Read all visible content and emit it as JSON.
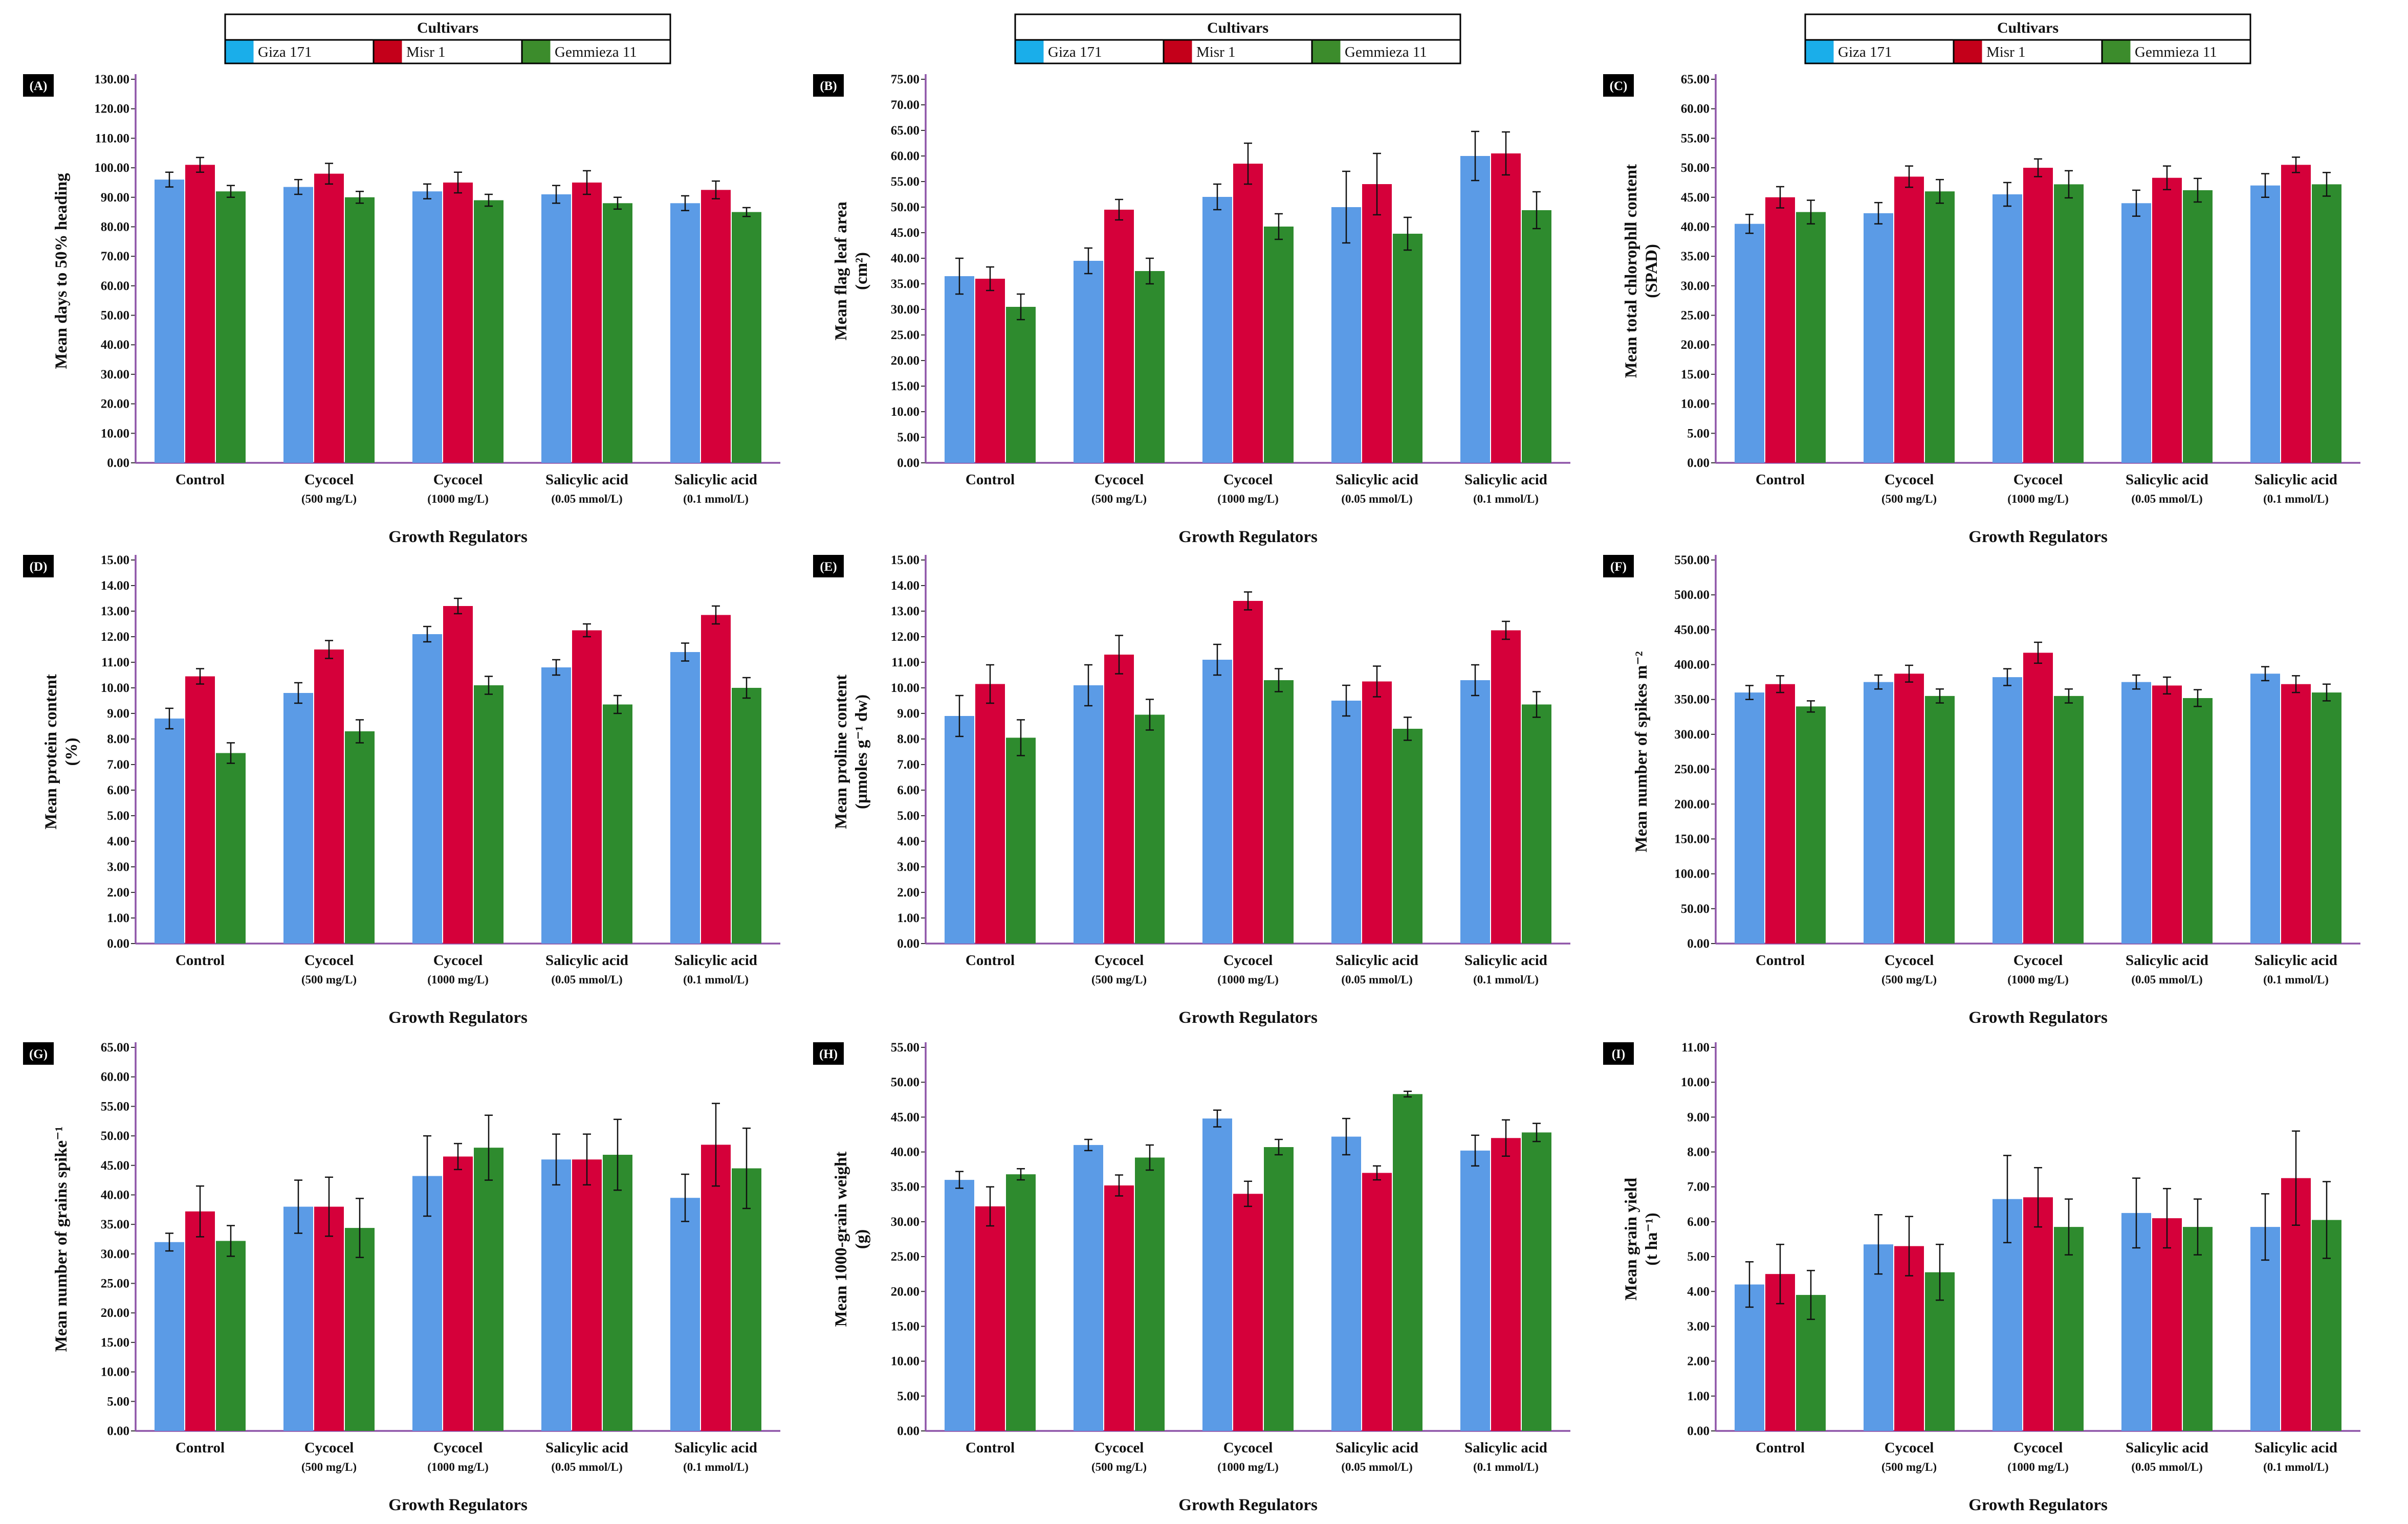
{
  "figure": {
    "legend_title": "Cultivars",
    "x_title": "Growth Regulators"
  },
  "chart_data": [
    {
      "panel": "(A)",
      "type": "bar",
      "ylabel": [
        "Mean days to 50% heading"
      ],
      "ylim": [
        0,
        130
      ],
      "tick_step": 10,
      "categories": [
        {
          "name": "Control",
          "sub": ""
        },
        {
          "name": "Cycocel",
          "sub": "(500 mg/L)"
        },
        {
          "name": "Cycocel",
          "sub": "(1000 mg/L)"
        },
        {
          "name": "Salicylic acid",
          "sub": "(0.05 mmol/L)"
        },
        {
          "name": "Salicylic acid",
          "sub": "(0.1 mmol/L)"
        }
      ],
      "series": [
        {
          "name": "Giza 171",
          "color": "#5b9be6",
          "legend_color": "#1aaeea",
          "values": [
            96,
            93.5,
            92,
            91,
            88
          ],
          "errors": [
            2.5,
            2.5,
            2.5,
            3,
            2.5
          ]
        },
        {
          "name": "Misr 1",
          "color": "#d5003a",
          "legend_color": "#c4001a",
          "values": [
            101,
            98,
            95,
            95,
            92.5
          ],
          "errors": [
            2.5,
            3.5,
            3.5,
            4,
            3
          ]
        },
        {
          "name": "Gemmieza 11",
          "color": "#2e8b2e",
          "legend_color": "#3c8c2c",
          "values": [
            92,
            90,
            89,
            88,
            85
          ],
          "errors": [
            2,
            2,
            2,
            2,
            1.5
          ]
        }
      ]
    },
    {
      "panel": "(B)",
      "type": "bar",
      "ylabel": [
        "Mean flag leaf area",
        "(cm²)"
      ],
      "ylim": [
        0,
        75
      ],
      "tick_step": 5,
      "categories": [
        {
          "name": "Control",
          "sub": ""
        },
        {
          "name": "Cycocel",
          "sub": "(500 mg/L)"
        },
        {
          "name": "Cycocel",
          "sub": "(1000 mg/L)"
        },
        {
          "name": "Salicylic acid",
          "sub": "(0.05 mmol/L)"
        },
        {
          "name": "Salicylic acid",
          "sub": "(0.1 mmol/L)"
        }
      ],
      "series": [
        {
          "name": "Giza 171",
          "color": "#5b9be6",
          "legend_color": "#1aaeea",
          "values": [
            36.5,
            39.5,
            52,
            50,
            60
          ],
          "errors": [
            3.5,
            2.5,
            2.5,
            7,
            4.8
          ]
        },
        {
          "name": "Misr 1",
          "color": "#d5003a",
          "legend_color": "#c4001a",
          "values": [
            36,
            49.5,
            58.5,
            54.5,
            60.5
          ],
          "errors": [
            2.3,
            2,
            4,
            6,
            4.2
          ]
        },
        {
          "name": "Gemmieza 11",
          "color": "#2e8b2e",
          "legend_color": "#3c8c2c",
          "values": [
            30.5,
            37.5,
            46.2,
            44.8,
            49.4
          ],
          "errors": [
            2.5,
            2.5,
            2.5,
            3.2,
            3.6
          ]
        }
      ]
    },
    {
      "panel": "(C)",
      "type": "bar",
      "ylabel": [
        "Mean total chlorophll content",
        "(SPAD)"
      ],
      "ylim": [
        0,
        65
      ],
      "tick_step": 5,
      "categories": [
        {
          "name": "Control",
          "sub": ""
        },
        {
          "name": "Cycocel",
          "sub": "(500 mg/L)"
        },
        {
          "name": "Cycocel",
          "sub": "(1000 mg/L)"
        },
        {
          "name": "Salicylic acid",
          "sub": "(0.05 mmol/L)"
        },
        {
          "name": "Salicylic acid",
          "sub": "(0.1 mmol/L)"
        }
      ],
      "series": [
        {
          "name": "Giza 171",
          "color": "#5b9be6",
          "legend_color": "#1aaeea",
          "values": [
            40.5,
            42.3,
            45.5,
            44,
            47
          ],
          "errors": [
            1.6,
            1.8,
            2,
            2.2,
            2
          ]
        },
        {
          "name": "Misr 1",
          "color": "#d5003a",
          "legend_color": "#c4001a",
          "values": [
            45,
            48.5,
            50,
            48.3,
            50.5
          ],
          "errors": [
            1.8,
            1.8,
            1.5,
            2,
            1.3
          ]
        },
        {
          "name": "Gemmieza 11",
          "color": "#2e8b2e",
          "legend_color": "#3c8c2c",
          "values": [
            42.5,
            46,
            47.2,
            46.2,
            47.2
          ],
          "errors": [
            2,
            2,
            2.3,
            2,
            2
          ]
        }
      ]
    },
    {
      "panel": "(D)",
      "type": "bar",
      "ylabel": [
        "Mean protein content",
        "(%)"
      ],
      "ylim": [
        0,
        15
      ],
      "tick_step": 1,
      "categories": [
        {
          "name": "Control",
          "sub": ""
        },
        {
          "name": "Cycocel",
          "sub": "(500 mg/L)"
        },
        {
          "name": "Cycocel",
          "sub": "(1000 mg/L)"
        },
        {
          "name": "Salicylic acid",
          "sub": "(0.05 mmol/L)"
        },
        {
          "name": "Salicylic acid",
          "sub": "(0.1 mmol/L)"
        }
      ],
      "series": [
        {
          "name": "Giza 171",
          "color": "#5b9be6",
          "legend_color": "#1aaeea",
          "values": [
            8.8,
            9.8,
            12.1,
            10.8,
            11.4
          ],
          "errors": [
            0.4,
            0.4,
            0.3,
            0.3,
            0.35
          ]
        },
        {
          "name": "Misr 1",
          "color": "#d5003a",
          "legend_color": "#c4001a",
          "values": [
            10.45,
            11.5,
            13.2,
            12.25,
            12.85
          ],
          "errors": [
            0.3,
            0.35,
            0.3,
            0.25,
            0.35
          ]
        },
        {
          "name": "Gemmieza 11",
          "color": "#2e8b2e",
          "legend_color": "#3c8c2c",
          "values": [
            7.45,
            8.3,
            10.1,
            9.35,
            10
          ],
          "errors": [
            0.4,
            0.45,
            0.35,
            0.35,
            0.4
          ]
        }
      ]
    },
    {
      "panel": "(E)",
      "type": "bar",
      "ylabel": [
        "Mean proline content",
        "(µmoles g⁻¹ dw)"
      ],
      "ylim": [
        0,
        15
      ],
      "tick_step": 1,
      "categories": [
        {
          "name": "Control",
          "sub": ""
        },
        {
          "name": "Cycocel",
          "sub": "(500 mg/L)"
        },
        {
          "name": "Cycocel",
          "sub": "(1000 mg/L)"
        },
        {
          "name": "Salicylic acid",
          "sub": "(0.05 mmol/L)"
        },
        {
          "name": "Salicylic acid",
          "sub": "(0.1 mmol/L)"
        }
      ],
      "series": [
        {
          "name": "Giza 171",
          "color": "#5b9be6",
          "legend_color": "#1aaeea",
          "values": [
            8.9,
            10.1,
            11.1,
            9.5,
            10.3
          ],
          "errors": [
            0.8,
            0.8,
            0.6,
            0.6,
            0.6
          ]
        },
        {
          "name": "Misr 1",
          "color": "#d5003a",
          "legend_color": "#c4001a",
          "values": [
            10.15,
            11.3,
            13.4,
            10.25,
            12.25
          ],
          "errors": [
            0.75,
            0.75,
            0.35,
            0.6,
            0.35
          ]
        },
        {
          "name": "Gemmieza 11",
          "color": "#2e8b2e",
          "legend_color": "#3c8c2c",
          "values": [
            8.05,
            8.95,
            10.3,
            8.4,
            9.35
          ],
          "errors": [
            0.7,
            0.6,
            0.45,
            0.45,
            0.5
          ]
        }
      ]
    },
    {
      "panel": "(F)",
      "type": "bar",
      "ylabel": [
        "Mean number of spikes m⁻²"
      ],
      "ylim": [
        0,
        550
      ],
      "tick_step": 50,
      "categories": [
        {
          "name": "Control",
          "sub": ""
        },
        {
          "name": "Cycocel",
          "sub": "(500 mg/L)"
        },
        {
          "name": "Cycocel",
          "sub": "(1000 mg/L)"
        },
        {
          "name": "Salicylic acid",
          "sub": "(0.05 mmol/L)"
        },
        {
          "name": "Salicylic acid",
          "sub": "(0.1 mmol/L)"
        }
      ],
      "series": [
        {
          "name": "Giza 171",
          "color": "#5b9be6",
          "legend_color": "#1aaeea",
          "values": [
            360,
            375,
            382,
            375,
            387
          ],
          "errors": [
            10,
            10,
            12,
            10,
            10
          ]
        },
        {
          "name": "Misr 1",
          "color": "#d5003a",
          "legend_color": "#c4001a",
          "values": [
            372,
            387,
            417,
            370,
            372
          ],
          "errors": [
            12,
            12,
            15,
            12,
            12
          ]
        },
        {
          "name": "Gemmieza 11",
          "color": "#2e8b2e",
          "legend_color": "#3c8c2c",
          "values": [
            340,
            355,
            355,
            352,
            360
          ],
          "errors": [
            8,
            10,
            10,
            12,
            12
          ]
        }
      ]
    },
    {
      "panel": "(G)",
      "type": "bar",
      "ylabel": [
        "Mean number  of grains spike⁻¹"
      ],
      "ylim": [
        0,
        65
      ],
      "tick_step": 5,
      "categories": [
        {
          "name": "Control",
          "sub": ""
        },
        {
          "name": "Cycocel",
          "sub": "(500 mg/L)"
        },
        {
          "name": "Cycocel",
          "sub": "(1000 mg/L)"
        },
        {
          "name": "Salicylic acid",
          "sub": "(0.05 mmol/L)"
        },
        {
          "name": "Salicylic acid",
          "sub": "(0.1 mmol/L)"
        }
      ],
      "series": [
        {
          "name": "Giza 171",
          "color": "#5b9be6",
          "legend_color": "#1aaeea",
          "values": [
            32,
            38,
            43.2,
            46,
            39.5
          ],
          "errors": [
            1.5,
            4.5,
            6.8,
            4.3,
            4
          ]
        },
        {
          "name": "Misr 1",
          "color": "#d5003a",
          "legend_color": "#c4001a",
          "values": [
            37.2,
            38,
            46.5,
            46,
            48.5
          ],
          "errors": [
            4.3,
            5,
            2.2,
            4.3,
            7
          ]
        },
        {
          "name": "Gemmieza 11",
          "color": "#2e8b2e",
          "legend_color": "#3c8c2c",
          "values": [
            32.2,
            34.4,
            48,
            46.8,
            44.5
          ],
          "errors": [
            2.6,
            5,
            5.5,
            6,
            6.8
          ]
        }
      ]
    },
    {
      "panel": "(H)",
      "type": "bar",
      "ylabel": [
        "Mean 1000-grain weight",
        "(g)"
      ],
      "ylim": [
        0,
        55
      ],
      "tick_step": 5,
      "categories": [
        {
          "name": "Control",
          "sub": ""
        },
        {
          "name": "Cycocel",
          "sub": "(500 mg/L)"
        },
        {
          "name": "Cycocel",
          "sub": "(1000 mg/L)"
        },
        {
          "name": "Salicylic acid",
          "sub": "(0.05 mmol/L)"
        },
        {
          "name": "Salicylic acid",
          "sub": "(0.1 mmol/L)"
        }
      ],
      "series": [
        {
          "name": "Giza 171",
          "color": "#5b9be6",
          "legend_color": "#1aaeea",
          "values": [
            36,
            41,
            44.8,
            42.2,
            40.2
          ],
          "errors": [
            1.2,
            0.8,
            1.2,
            2.6,
            2.2
          ]
        },
        {
          "name": "Misr 1",
          "color": "#d5003a",
          "legend_color": "#c4001a",
          "values": [
            32.2,
            35.2,
            34,
            37,
            42
          ],
          "errors": [
            2.8,
            1.5,
            1.8,
            1,
            2.6
          ]
        },
        {
          "name": "Gemmieza 11",
          "color": "#2e8b2e",
          "legend_color": "#3c8c2c",
          "values": [
            36.8,
            39.2,
            40.7,
            48.3,
            42.8
          ],
          "errors": [
            0.8,
            1.8,
            1.1,
            0.4,
            1.3
          ]
        }
      ]
    },
    {
      "panel": "(I)",
      "type": "bar",
      "ylabel": [
        "Mean grain yield",
        "(t ha⁻¹)"
      ],
      "ylim": [
        0,
        11
      ],
      "tick_step": 1,
      "categories": [
        {
          "name": "Control",
          "sub": ""
        },
        {
          "name": "Cycocel",
          "sub": "(500 mg/L)"
        },
        {
          "name": "Cycocel",
          "sub": "(1000 mg/L)"
        },
        {
          "name": "Salicylic acid",
          "sub": "(0.05 mmol/L)"
        },
        {
          "name": "Salicylic acid",
          "sub": "(0.1 mmol/L)"
        }
      ],
      "series": [
        {
          "name": "Giza 171",
          "color": "#5b9be6",
          "legend_color": "#1aaeea",
          "values": [
            4.2,
            5.35,
            6.65,
            6.25,
            5.85
          ],
          "errors": [
            0.65,
            0.85,
            1.25,
            1,
            0.95
          ]
        },
        {
          "name": "Misr 1",
          "color": "#d5003a",
          "legend_color": "#c4001a",
          "values": [
            4.5,
            5.3,
            6.7,
            6.1,
            7.25
          ],
          "errors": [
            0.85,
            0.85,
            0.85,
            0.85,
            1.35
          ]
        },
        {
          "name": "Gemmieza 11",
          "color": "#2e8b2e",
          "legend_color": "#3c8c2c",
          "values": [
            3.9,
            4.55,
            5.85,
            5.85,
            6.05
          ],
          "errors": [
            0.7,
            0.8,
            0.8,
            0.8,
            1.1
          ]
        }
      ]
    }
  ]
}
